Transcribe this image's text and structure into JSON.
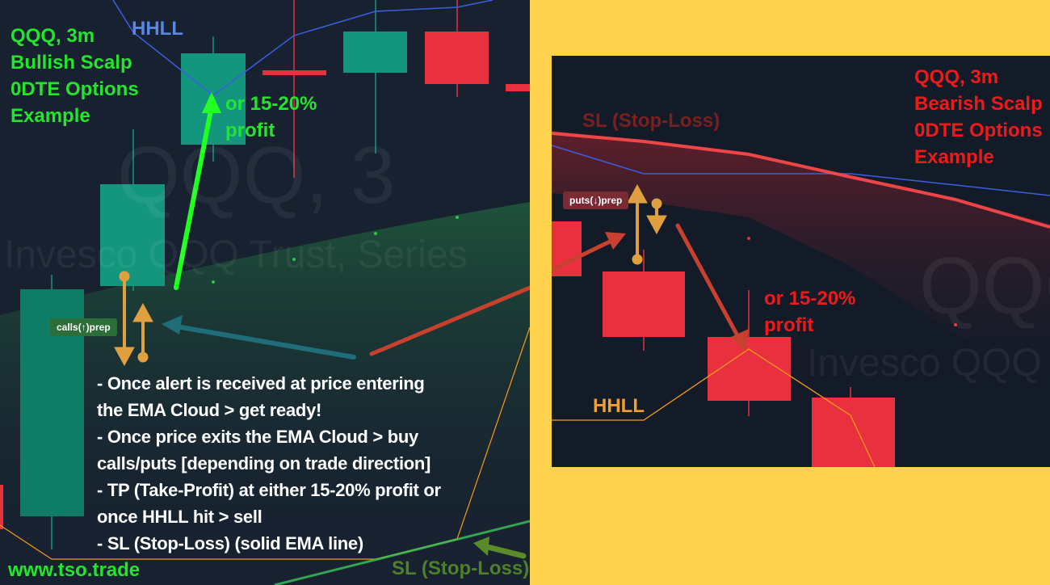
{
  "left_chart": {
    "watermark_symbol": "QQQ, 3",
    "watermark_name": "Invesco QQQ Trust, Series",
    "title_lines": [
      "QQQ, 3m",
      "Bullish Scalp",
      "0DTE Options",
      "Example"
    ],
    "hhll_label": "HHLL",
    "profit_label_lines": [
      "or 15-20%",
      "profit"
    ],
    "signal_tag": "calls(↑)prep",
    "sl_label": "SL (Stop-Loss)",
    "website": "www.tso.trade",
    "instructions": [
      "- Once alert is received at price entering",
      "the EMA Cloud > get ready!",
      "- Once price exits the EMA Cloud > buy",
      "calls/puts [depending on trade direction]",
      "- TP (Take-Profit) at either 15-20% profit or",
      "once HHLL hit > sell",
      "- SL (Stop-Loss) (solid EMA line)"
    ]
  },
  "right_chart": {
    "watermark_symbol": "QQQ",
    "watermark_name": "Invesco QQQ",
    "title_lines": [
      "QQQ, 3m",
      "Bearish Scalp",
      "0DTE Options",
      "Example"
    ],
    "sl_label": "SL (Stop-Loss)",
    "hhll_label": "HHLL",
    "profit_label_lines": [
      "or 15-20%",
      "profit"
    ],
    "signal_tag": "puts(↓)prep"
  },
  "colors": {
    "bull_candle": "#14967e",
    "bear_candle": "#e8303f",
    "hhll_blue": "#3b5fe0",
    "hhll_orange": "#f29a1a",
    "arrow_gold": "#e0a040",
    "title_green": "#22e62c",
    "title_red": "#ee1a1a",
    "background_yellow": "#ffd24d"
  }
}
